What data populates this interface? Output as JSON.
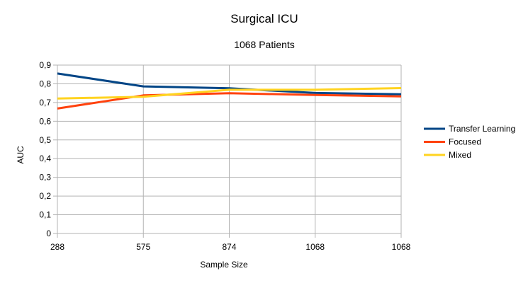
{
  "chart_data": {
    "type": "line",
    "title": "Surgical ICU",
    "subtitle": "1068 Patients",
    "xlabel": "Sample Size",
    "ylabel": "AUC",
    "categories": [
      "288",
      "575",
      "874",
      "1068",
      "1068"
    ],
    "ylim": [
      0,
      0.9
    ],
    "yticks": [
      "0",
      "0,1",
      "0,2",
      "0,3",
      "0,4",
      "0,5",
      "0,6",
      "0,7",
      "0,8",
      "0,9"
    ],
    "grid": true,
    "legend_position": "right",
    "series": [
      {
        "name": "Transfer Learning",
        "color": "#004586",
        "values": [
          0.855,
          0.786,
          0.776,
          0.751,
          0.744
        ]
      },
      {
        "name": "Focused",
        "color": "#ff420e",
        "values": [
          0.668,
          0.738,
          0.75,
          0.74,
          0.733
        ]
      },
      {
        "name": "Mixed",
        "color": "#ffd320",
        "values": [
          0.721,
          0.731,
          0.768,
          0.768,
          0.777
        ]
      }
    ]
  }
}
